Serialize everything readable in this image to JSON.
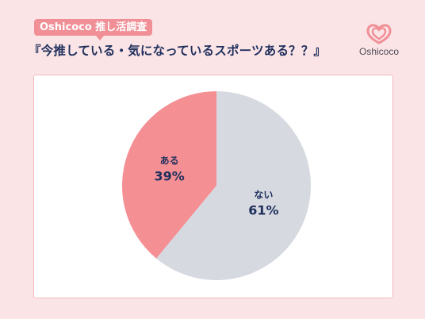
{
  "header": {
    "badge": "Oshicoco 推し活調査",
    "title": "『今推している・気になっているスポーツある？？』"
  },
  "logo": {
    "text": "Oshicoco",
    "icon": "double-heart-icon",
    "color": "#f08f96"
  },
  "chart_data": {
    "type": "pie",
    "slices": [
      {
        "label": "ある",
        "value": 39,
        "display": "39%",
        "color": "#f48f94"
      },
      {
        "label": "ない",
        "value": 61,
        "display": "61%",
        "color": "#d6d9e0"
      }
    ],
    "start_angle": 0,
    "direction": "counterclockwise"
  }
}
